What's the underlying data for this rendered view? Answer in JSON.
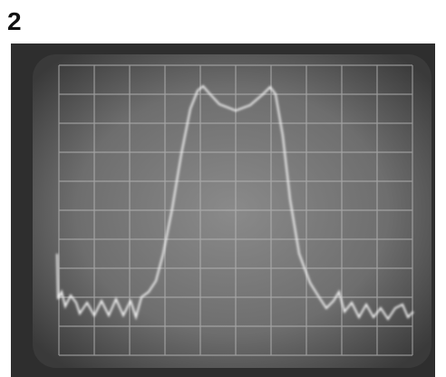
{
  "label": "2"
}
